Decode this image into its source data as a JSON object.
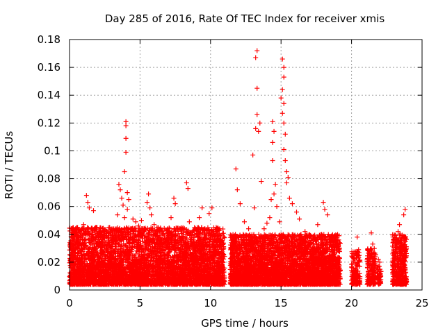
{
  "chart_data": {
    "type": "scatter",
    "title": "Day 285 of 2016, Rate Of TEC Index for receiver xmis",
    "xlabel": "GPS time / hours",
    "ylabel": "ROTI / TECUs",
    "xlim": [
      0,
      25
    ],
    "ylim": [
      0,
      0.18
    ],
    "xticks": [
      0,
      5,
      10,
      15,
      20,
      25
    ],
    "yticks": [
      0,
      0.02,
      0.04,
      0.06,
      0.08,
      0.1,
      0.12,
      0.14,
      0.16,
      0.18
    ],
    "xtick_labels": [
      "0",
      "5",
      "10",
      "15",
      "20",
      "25"
    ],
    "ytick_labels": [
      "0",
      "0.02",
      "0.04",
      "0.06",
      "0.08",
      "0.1",
      "0.12",
      "0.14",
      "0.16",
      "0.18"
    ],
    "grid": true,
    "marker": "plus",
    "marker_color": "#ff0000",
    "series": [
      {
        "name": "ROTI",
        "points": [
          [
            0.3,
            0.028
          ],
          [
            0.6,
            0.022
          ],
          [
            0.9,
            0.018
          ],
          [
            1.0,
            0.047
          ],
          [
            1.2,
            0.068
          ],
          [
            1.3,
            0.063
          ],
          [
            1.4,
            0.059
          ],
          [
            1.6,
            0.025
          ],
          [
            1.7,
            0.057
          ],
          [
            1.9,
            0.045
          ],
          [
            2.1,
            0.032
          ],
          [
            2.3,
            0.041
          ],
          [
            2.5,
            0.033
          ],
          [
            2.7,
            0.029
          ],
          [
            3.1,
            0.039
          ],
          [
            3.3,
            0.044
          ],
          [
            3.6,
            0.041
          ],
          [
            3.4,
            0.054
          ],
          [
            3.5,
            0.076
          ],
          [
            3.6,
            0.072
          ],
          [
            3.7,
            0.066
          ],
          [
            3.8,
            0.061
          ],
          [
            3.9,
            0.052
          ],
          [
            4.0,
            0.121
          ],
          [
            4.0,
            0.118
          ],
          [
            4.0,
            0.109
          ],
          [
            4.0,
            0.099
          ],
          [
            3.9,
            0.085
          ],
          [
            4.1,
            0.07
          ],
          [
            4.2,
            0.065
          ],
          [
            4.1,
            0.058
          ],
          [
            4.4,
            0.044
          ],
          [
            4.5,
            0.051
          ],
          [
            4.7,
            0.049
          ],
          [
            4.9,
            0.046
          ],
          [
            5.1,
            0.05
          ],
          [
            5.3,
            0.042
          ],
          [
            5.5,
            0.063
          ],
          [
            5.6,
            0.069
          ],
          [
            5.7,
            0.059
          ],
          [
            5.8,
            0.054
          ],
          [
            6.0,
            0.047
          ],
          [
            6.2,
            0.039
          ],
          [
            6.5,
            0.033
          ],
          [
            6.9,
            0.043
          ],
          [
            7.2,
            0.052
          ],
          [
            7.4,
            0.066
          ],
          [
            7.5,
            0.062
          ],
          [
            7.8,
            0.044
          ],
          [
            8.2,
            0.038
          ],
          [
            8.3,
            0.077
          ],
          [
            8.4,
            0.073
          ],
          [
            8.5,
            0.049
          ],
          [
            8.9,
            0.04
          ],
          [
            9.2,
            0.052
          ],
          [
            9.4,
            0.059
          ],
          [
            9.6,
            0.044
          ],
          [
            9.9,
            0.055
          ],
          [
            10.1,
            0.059
          ],
          [
            10.4,
            0.045
          ],
          [
            10.7,
            0.039
          ],
          [
            11.6,
            0.036
          ],
          [
            11.8,
            0.087
          ],
          [
            11.9,
            0.072
          ],
          [
            12.1,
            0.062
          ],
          [
            12.4,
            0.049
          ],
          [
            12.7,
            0.044
          ],
          [
            13.0,
            0.097
          ],
          [
            13.1,
            0.059
          ],
          [
            13.2,
            0.167
          ],
          [
            13.3,
            0.172
          ],
          [
            13.3,
            0.145
          ],
          [
            13.3,
            0.126
          ],
          [
            13.2,
            0.116
          ],
          [
            13.4,
            0.114
          ],
          [
            13.5,
            0.12
          ],
          [
            13.6,
            0.078
          ],
          [
            13.8,
            0.044
          ],
          [
            14.0,
            0.048
          ],
          [
            14.2,
            0.052
          ],
          [
            14.3,
            0.065
          ],
          [
            14.4,
            0.106
          ],
          [
            14.4,
            0.121
          ],
          [
            14.5,
            0.114
          ],
          [
            14.4,
            0.093
          ],
          [
            14.5,
            0.069
          ],
          [
            14.6,
            0.076
          ],
          [
            14.7,
            0.06
          ],
          [
            14.9,
            0.049
          ],
          [
            15.0,
            0.138
          ],
          [
            15.1,
            0.166
          ],
          [
            15.2,
            0.16
          ],
          [
            15.2,
            0.153
          ],
          [
            15.1,
            0.144
          ],
          [
            15.2,
            0.134
          ],
          [
            15.1,
            0.127
          ],
          [
            15.2,
            0.12
          ],
          [
            15.3,
            0.112
          ],
          [
            15.2,
            0.101
          ],
          [
            15.3,
            0.093
          ],
          [
            15.4,
            0.085
          ],
          [
            15.5,
            0.081
          ],
          [
            15.4,
            0.077
          ],
          [
            15.6,
            0.066
          ],
          [
            15.8,
            0.062
          ],
          [
            16.1,
            0.056
          ],
          [
            16.3,
            0.051
          ],
          [
            16.7,
            0.042
          ],
          [
            17.1,
            0.039
          ],
          [
            17.6,
            0.047
          ],
          [
            18.0,
            0.063
          ],
          [
            18.1,
            0.058
          ],
          [
            18.3,
            0.054
          ],
          [
            18.6,
            0.039
          ],
          [
            19.0,
            0.036
          ],
          [
            20.4,
            0.038
          ],
          [
            20.5,
            0.029
          ],
          [
            21.4,
            0.041
          ],
          [
            21.5,
            0.033
          ],
          [
            21.9,
            0.022
          ],
          [
            22.0,
            0.02
          ],
          [
            23.1,
            0.032
          ],
          [
            23.3,
            0.042
          ],
          [
            23.4,
            0.047
          ],
          [
            23.6,
            0.037
          ],
          [
            23.8,
            0.058
          ],
          [
            23.7,
            0.054
          ]
        ],
        "dense_bands": [
          {
            "x": [
              0.0,
              11.0
            ],
            "y": [
              0.004,
              0.045
            ],
            "count": 4800
          },
          {
            "x": [
              11.4,
              19.2
            ],
            "y": [
              0.004,
              0.04
            ],
            "count": 3800
          },
          {
            "x": [
              20.0,
              20.6
            ],
            "y": [
              0.004,
              0.028
            ],
            "count": 160
          },
          {
            "x": [
              21.1,
              21.7
            ],
            "y": [
              0.004,
              0.03
            ],
            "count": 180
          },
          {
            "x": [
              21.8,
              22.1
            ],
            "y": [
              0.004,
              0.018
            ],
            "count": 50
          },
          {
            "x": [
              22.9,
              23.9
            ],
            "y": [
              0.004,
              0.04
            ],
            "count": 420
          }
        ]
      }
    ]
  }
}
